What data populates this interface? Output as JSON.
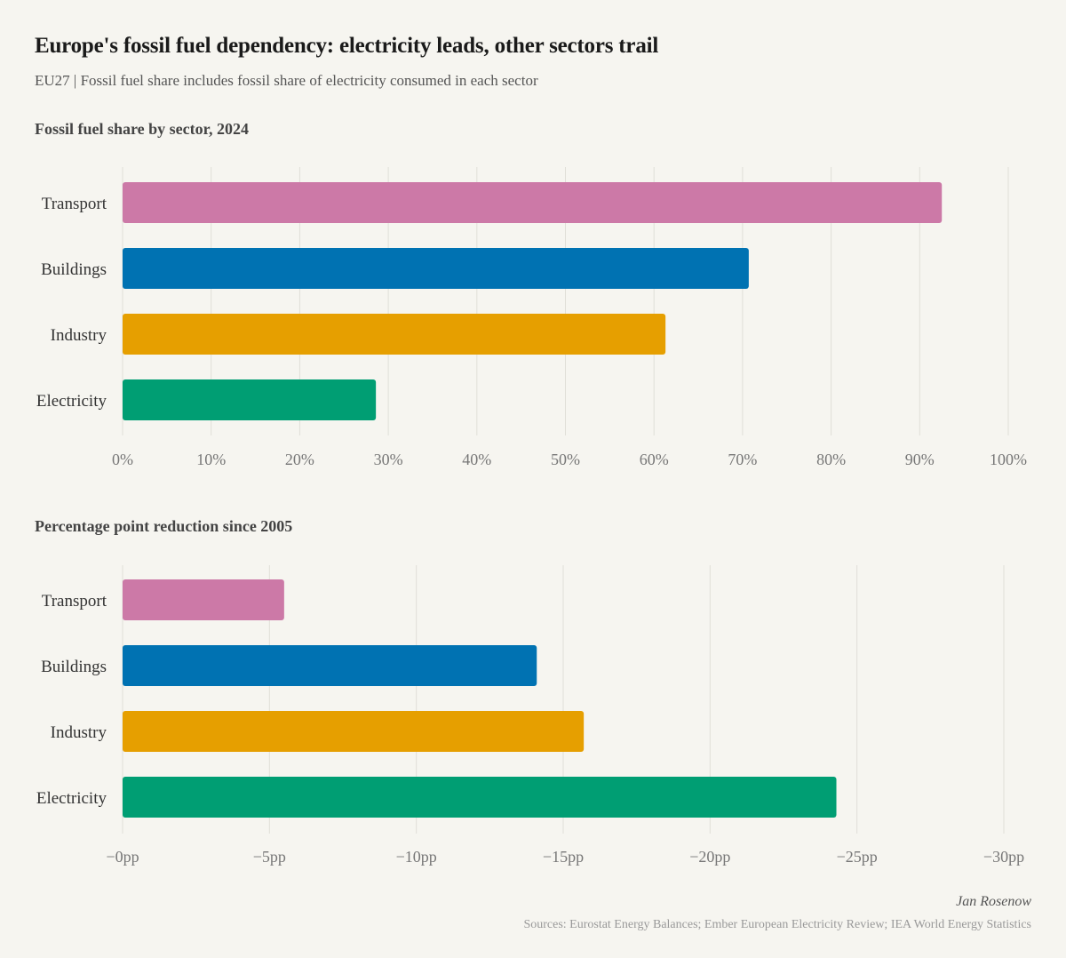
{
  "header": {
    "title": "Europe's fossil fuel dependency: electricity leads, other sectors trail",
    "subtitle": "EU27 | Fossil fuel share includes fossil share of electricity consumed in each sector"
  },
  "footer": {
    "author": "Jan Rosenow",
    "sources": "Sources: Eurostat Energy Balances; Ember European Electricity Review; IEA World Energy Statistics"
  },
  "colors": {
    "Transport": "#cc79a7",
    "Buildings": "#0072b2",
    "Industry": "#e69f00",
    "Electricity": "#009e73"
  },
  "chart_data": [
    {
      "type": "bar",
      "orientation": "horizontal",
      "title": "Fossil fuel share by sector, 2024",
      "categories": [
        "Transport",
        "Buildings",
        "Industry",
        "Electricity"
      ],
      "values": [
        92.5,
        70.7,
        61.3,
        28.6
      ],
      "xlim": [
        0,
        100
      ],
      "ticks": [
        0,
        10,
        20,
        30,
        40,
        50,
        60,
        70,
        80,
        90,
        100
      ],
      "tick_labels": [
        "0%",
        "10%",
        "20%",
        "30%",
        "40%",
        "50%",
        "60%",
        "70%",
        "80%",
        "90%",
        "100%"
      ],
      "grid": true
    },
    {
      "type": "bar",
      "orientation": "horizontal",
      "title": "Percentage point reduction since 2005",
      "categories": [
        "Transport",
        "Buildings",
        "Industry",
        "Electricity"
      ],
      "values": [
        -5.5,
        -14.1,
        -15.7,
        -24.3
      ],
      "xlim": [
        0,
        -30
      ],
      "ticks": [
        0,
        -5,
        -10,
        -15,
        -20,
        -25,
        -30
      ],
      "tick_labels": [
        "−0pp",
        "−5pp",
        "−10pp",
        "−15pp",
        "−20pp",
        "−25pp",
        "−30pp"
      ],
      "grid": true
    }
  ]
}
